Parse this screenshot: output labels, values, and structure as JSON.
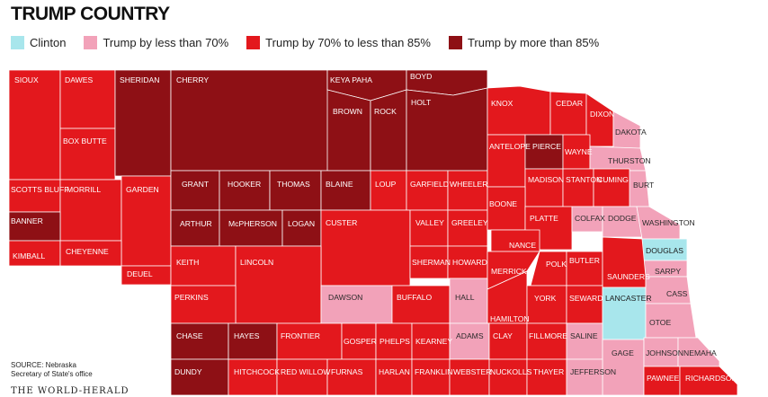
{
  "title": "TRUMP COUNTRY",
  "legend": [
    {
      "label": "Clinton",
      "color": "#a8e6ec"
    },
    {
      "label": "Trump by less than 70%",
      "color": "#f2a2b9"
    },
    {
      "label": "Trump by 70% to less than 85%",
      "color": "#e3181d"
    },
    {
      "label": "Trump by more than 85%",
      "color": "#8e1015"
    }
  ],
  "source": {
    "line1": "SOURCE: Nebraska",
    "line2": "Secretary of State's office"
  },
  "credit": "THE WORLD-HERALD",
  "counties": [
    {
      "name": "SIOUX",
      "cat": 2
    },
    {
      "name": "DAWES",
      "cat": 2
    },
    {
      "name": "BOX BUTTE",
      "cat": 2
    },
    {
      "name": "SHERIDAN",
      "cat": 3
    },
    {
      "name": "CHERRY",
      "cat": 3
    },
    {
      "name": "KEYA PAHA",
      "cat": 3
    },
    {
      "name": "BOYD",
      "cat": 3
    },
    {
      "name": "BROWN",
      "cat": 3
    },
    {
      "name": "ROCK",
      "cat": 3
    },
    {
      "name": "HOLT",
      "cat": 3
    },
    {
      "name": "KNOX",
      "cat": 2
    },
    {
      "name": "CEDAR",
      "cat": 2
    },
    {
      "name": "DIXON",
      "cat": 2
    },
    {
      "name": "DAKOTA",
      "cat": 1
    },
    {
      "name": "SCOTTS BLUFF",
      "cat": 2
    },
    {
      "name": "MORRILL",
      "cat": 2
    },
    {
      "name": "GARDEN",
      "cat": 2
    },
    {
      "name": "GRANT",
      "cat": 3
    },
    {
      "name": "HOOKER",
      "cat": 3
    },
    {
      "name": "THOMAS",
      "cat": 3
    },
    {
      "name": "BLAINE",
      "cat": 3
    },
    {
      "name": "LOUP",
      "cat": 2
    },
    {
      "name": "GARFIELD",
      "cat": 2
    },
    {
      "name": "WHEELER",
      "cat": 2
    },
    {
      "name": "ANTELOPE",
      "cat": 2
    },
    {
      "name": "PIERCE",
      "cat": 3
    },
    {
      "name": "WAYNE",
      "cat": 2
    },
    {
      "name": "THURSTON",
      "cat": 1
    },
    {
      "name": "BURT",
      "cat": 1
    },
    {
      "name": "MADISON",
      "cat": 2
    },
    {
      "name": "STANTON",
      "cat": 2
    },
    {
      "name": "CUMING",
      "cat": 2
    },
    {
      "name": "BANNER",
      "cat": 3
    },
    {
      "name": "KIMBALL",
      "cat": 2
    },
    {
      "name": "CHEYENNE",
      "cat": 2
    },
    {
      "name": "DEUEL",
      "cat": 2
    },
    {
      "name": "ARTHUR",
      "cat": 3
    },
    {
      "name": "McPHERSON",
      "cat": 3
    },
    {
      "name": "LOGAN",
      "cat": 3
    },
    {
      "name": "CUSTER",
      "cat": 2
    },
    {
      "name": "VALLEY",
      "cat": 2
    },
    {
      "name": "GREELEY",
      "cat": 2
    },
    {
      "name": "BOONE",
      "cat": 2
    },
    {
      "name": "PLATTE",
      "cat": 2
    },
    {
      "name": "COLFAX",
      "cat": 1
    },
    {
      "name": "DODGE",
      "cat": 1
    },
    {
      "name": "WASHINGTON",
      "cat": 1
    },
    {
      "name": "DOUGLAS",
      "cat": 0
    },
    {
      "name": "SARPY",
      "cat": 1
    },
    {
      "name": "NANCE",
      "cat": 2
    },
    {
      "name": "KEITH",
      "cat": 2
    },
    {
      "name": "LINCOLN",
      "cat": 2
    },
    {
      "name": "SHERMAN",
      "cat": 2
    },
    {
      "name": "HOWARD",
      "cat": 2
    },
    {
      "name": "MERRICK",
      "cat": 2
    },
    {
      "name": "POLK",
      "cat": 2
    },
    {
      "name": "BUTLER",
      "cat": 2
    },
    {
      "name": "SAUNDERS",
      "cat": 2
    },
    {
      "name": "PERKINS",
      "cat": 2
    },
    {
      "name": "DAWSON",
      "cat": 1
    },
    {
      "name": "BUFFALO",
      "cat": 2
    },
    {
      "name": "HALL",
      "cat": 1
    },
    {
      "name": "HAMILTON",
      "cat": 2
    },
    {
      "name": "YORK",
      "cat": 2
    },
    {
      "name": "SEWARD",
      "cat": 2
    },
    {
      "name": "LANCASTER",
      "cat": 0
    },
    {
      "name": "CASS",
      "cat": 1
    },
    {
      "name": "OTOE",
      "cat": 1
    },
    {
      "name": "CHASE",
      "cat": 3
    },
    {
      "name": "HAYES",
      "cat": 3
    },
    {
      "name": "FRONTIER",
      "cat": 2
    },
    {
      "name": "GOSPER",
      "cat": 2
    },
    {
      "name": "PHELPS",
      "cat": 2
    },
    {
      "name": "KEARNEY",
      "cat": 2
    },
    {
      "name": "ADAMS",
      "cat": 1
    },
    {
      "name": "CLAY",
      "cat": 2
    },
    {
      "name": "FILLMORE",
      "cat": 2
    },
    {
      "name": "SALINE",
      "cat": 1
    },
    {
      "name": "GAGE",
      "cat": 1
    },
    {
      "name": "JOHNSON",
      "cat": 1
    },
    {
      "name": "NEMAHA",
      "cat": 1
    },
    {
      "name": "DUNDY",
      "cat": 3
    },
    {
      "name": "HITCHCOCK",
      "cat": 2
    },
    {
      "name": "RED WILLOW",
      "cat": 2
    },
    {
      "name": "FURNAS",
      "cat": 2
    },
    {
      "name": "HARLAN",
      "cat": 2
    },
    {
      "name": "FRANKLIN",
      "cat": 2
    },
    {
      "name": "WEBSTER",
      "cat": 2
    },
    {
      "name": "NUCKOLLS",
      "cat": 2
    },
    {
      "name": "THAYER",
      "cat": 2
    },
    {
      "name": "JEFFERSON",
      "cat": 1
    },
    {
      "name": "PAWNEE",
      "cat": 2
    },
    {
      "name": "RICHARDSON",
      "cat": 2
    }
  ]
}
